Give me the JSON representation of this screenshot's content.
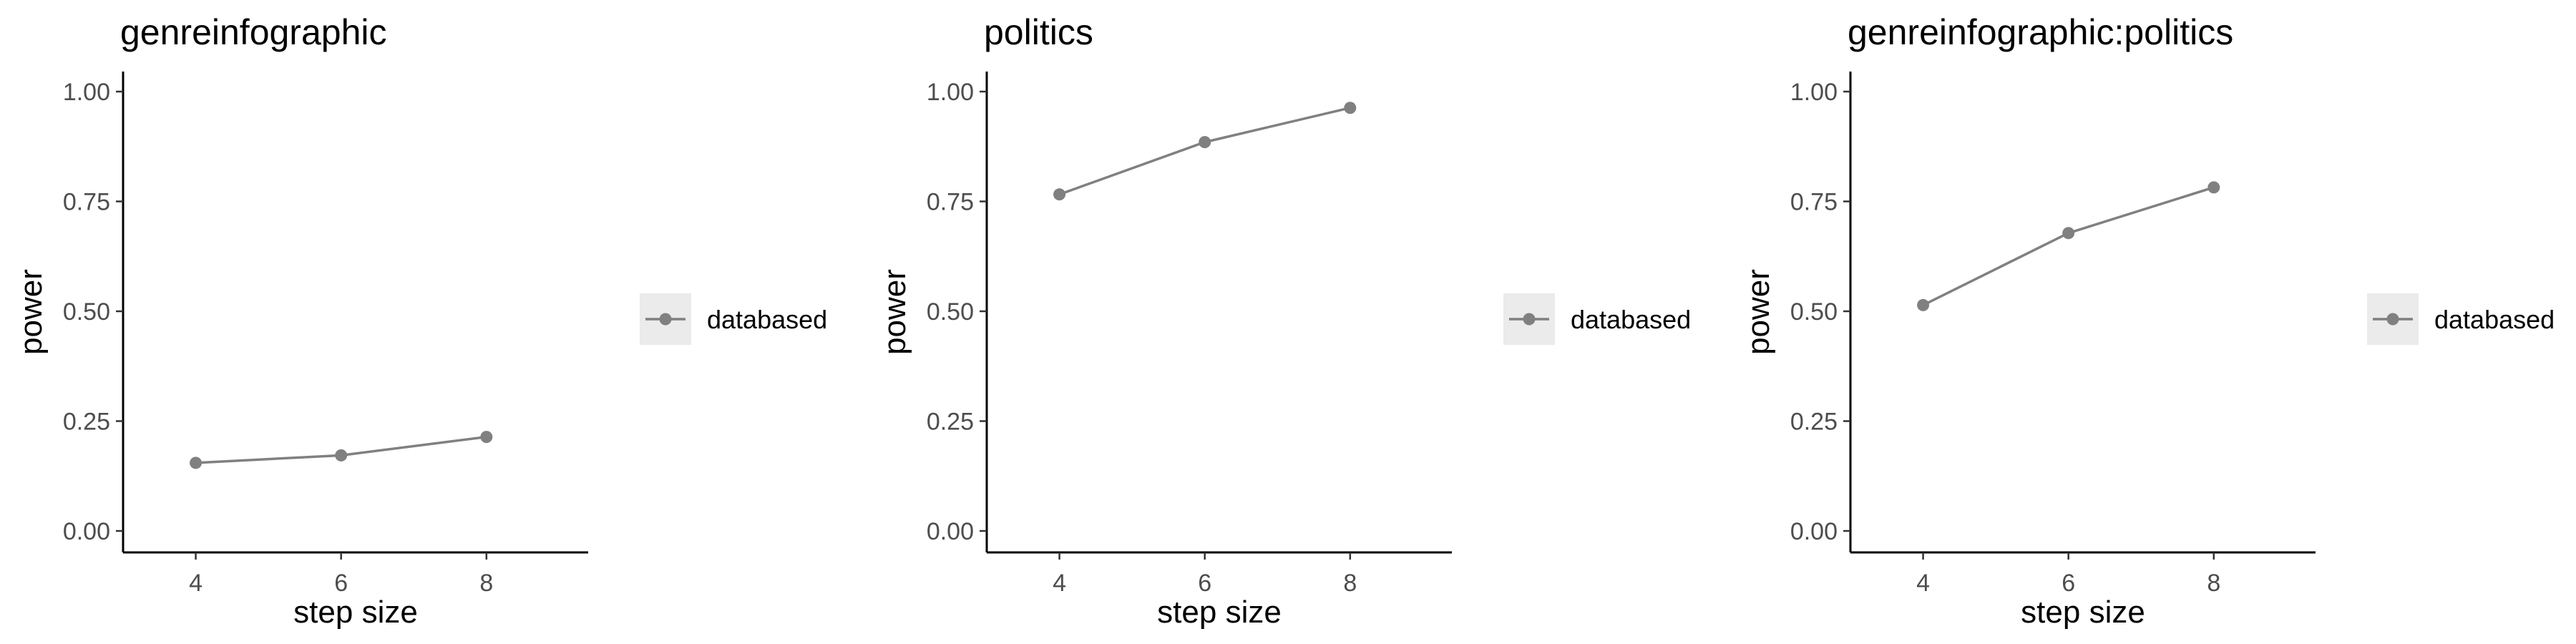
{
  "chart_data": [
    {
      "type": "line",
      "title": "genreinfographic",
      "xlabel": "step size",
      "ylabel": "power",
      "x": [
        4,
        6,
        8
      ],
      "xticks": [
        "4",
        "6",
        "8"
      ],
      "yticks": [
        "0.00",
        "0.25",
        "0.50",
        "0.75",
        "1.00"
      ],
      "ylim": [
        0,
        1
      ],
      "grid": false,
      "legend": "right",
      "series": [
        {
          "name": "databased",
          "color": "#808080",
          "values": [
            0.155,
            0.172,
            0.214
          ]
        }
      ]
    },
    {
      "type": "line",
      "title": "politics",
      "xlabel": "step size",
      "ylabel": "power",
      "x": [
        4,
        6,
        8
      ],
      "xticks": [
        "4",
        "6",
        "8"
      ],
      "yticks": [
        "0.00",
        "0.25",
        "0.50",
        "0.75",
        "1.00"
      ],
      "ylim": [
        0,
        1
      ],
      "grid": false,
      "legend": "right",
      "series": [
        {
          "name": "databased",
          "color": "#808080",
          "values": [
            0.766,
            0.885,
            0.963
          ]
        }
      ]
    },
    {
      "type": "line",
      "title": "genreinfographic:politics",
      "xlabel": "step size",
      "ylabel": "power",
      "x": [
        4,
        6,
        8
      ],
      "xticks": [
        "4",
        "6",
        "8"
      ],
      "yticks": [
        "0.00",
        "0.25",
        "0.50",
        "0.75",
        "1.00"
      ],
      "ylim": [
        0,
        1
      ],
      "grid": false,
      "legend": "right",
      "series": [
        {
          "name": "databased",
          "color": "#808080",
          "values": [
            0.514,
            0.678,
            0.782
          ]
        }
      ]
    }
  ]
}
